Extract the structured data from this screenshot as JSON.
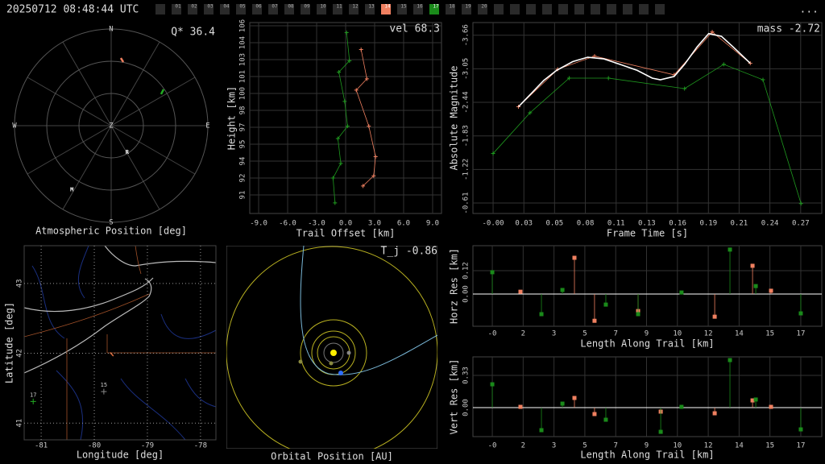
{
  "header": {
    "timestamp": "20250712 08:48:44 UTC",
    "menu": "...",
    "channels": [
      {
        "label": "01"
      },
      {
        "label": "02"
      },
      {
        "label": "03"
      },
      {
        "label": "04"
      },
      {
        "label": "05"
      },
      {
        "label": "06"
      },
      {
        "label": "07"
      },
      {
        "label": "08"
      },
      {
        "label": "09"
      },
      {
        "label": "10"
      },
      {
        "label": "11"
      },
      {
        "label": "12"
      },
      {
        "label": "13"
      },
      {
        "label": "14",
        "color": "#f08060"
      },
      {
        "label": "15"
      },
      {
        "label": "16"
      },
      {
        "label": "17",
        "color": "#1a8a1a"
      },
      {
        "label": "18"
      },
      {
        "label": "19"
      },
      {
        "label": "20"
      }
    ]
  },
  "chart_data": [
    {
      "type": "polar",
      "title": "Atmospheric Position [deg]",
      "annotation": "Q* 36.4",
      "compass": [
        "N",
        "E",
        "S",
        "W"
      ],
      "center_label": "Z",
      "rlim": [
        0,
        90
      ],
      "rings": [
        30,
        60,
        90
      ],
      "traces": [
        {
          "color": "#f08060",
          "az": [
            8.1,
            10.8
          ],
          "zen": [
            63.6,
            60.3
          ]
        },
        {
          "color": "#22aa22",
          "az": [
            57.8,
            55.3
          ],
          "zen": [
            54.9,
            59.3
          ]
        }
      ],
      "markers": [
        {
          "label": "R",
          "az": 149,
          "zen": 29
        },
        {
          "label": "M",
          "az": 211.5,
          "zen": 70
        }
      ]
    },
    {
      "type": "line",
      "annotation": "vel 68.3",
      "xlabel": "Trail Offset [km]",
      "ylabel": "Height [km]",
      "grid": "solid",
      "xlim": [
        -9.92,
        9.92
      ],
      "ylim": [
        89.36,
        106.29
      ],
      "xticks": [
        {
          "value": -9,
          "label": "-9.0"
        },
        {
          "value": -6,
          "label": "-6.0"
        },
        {
          "value": -3,
          "label": "-3.0"
        },
        {
          "value": 0,
          "label": "0.0"
        },
        {
          "value": 3,
          "label": "3.0"
        },
        {
          "value": 6,
          "label": "6.0"
        },
        {
          "value": 9,
          "label": "9.0"
        }
      ],
      "yticks": [
        91,
        {
          "value": 92.5,
          "label": "92"
        },
        94,
        {
          "value": 95.5,
          "label": "95"
        },
        97,
        {
          "value": 98.5,
          "label": "98"
        },
        100,
        {
          "value": 101.5,
          "label": "101"
        },
        103,
        {
          "value": 104.5,
          "label": "104"
        },
        106
      ],
      "series": [
        {
          "color": "#f08060",
          "marker": "+",
          "x": [
            1.8,
            2.9,
            3.1,
            2.4,
            1.1,
            2.2,
            1.6
          ],
          "values": [
            91.8,
            92.7,
            94.4,
            97.1,
            100.3,
            101.3,
            103.9
          ]
        },
        {
          "color": "#1f9a1f",
          "marker": "+",
          "x": [
            -1.1,
            -1.3,
            -0.5,
            -0.8,
            0.2,
            -0.1,
            -0.7,
            0.4,
            0.1
          ],
          "values": [
            90.3,
            92.5,
            93.8,
            96.0,
            97.1,
            99.3,
            101.9,
            102.9,
            105.4
          ]
        }
      ]
    },
    {
      "type": "line",
      "annotation": "mass -2.72",
      "xlabel": "Frame Time [s]",
      "ylabel": "Absolute Magnitude",
      "grid": "solid",
      "xlim": [
        -0.0175,
        0.285
      ],
      "ylim": [
        -0.42,
        -3.89
      ],
      "xticks": [
        {
          "value": 0,
          "label": "-0.00"
        },
        {
          "value": 0.0267,
          "label": "0.03"
        },
        {
          "value": 0.0533,
          "label": "0.05"
        },
        {
          "value": 0.08,
          "label": "0.08"
        },
        {
          "value": 0.1067,
          "label": "0.11"
        },
        {
          "value": 0.1333,
          "label": "0.13"
        },
        {
          "value": 0.16,
          "label": "0.16"
        },
        {
          "value": 0.1867,
          "label": "0.19"
        },
        {
          "value": 0.2133,
          "label": "0.21"
        },
        {
          "value": 0.24,
          "label": "0.24"
        },
        {
          "value": 0.2667,
          "label": "0.27"
        }
      ],
      "yticks": [
        -3.66,
        -3.05,
        -2.44,
        -1.83,
        -1.22,
        -0.61
      ],
      "series": [
        {
          "color": "#1f9a1f",
          "marker": "+",
          "x": [
            0,
            0.032,
            0.066,
            0.1,
            0.166,
            0.2,
            0.234,
            0.267
          ],
          "values": [
            -1.51,
            -2.25,
            -2.88,
            -2.88,
            -2.69,
            -3.13,
            -2.85,
            -0.6
          ]
        },
        {
          "color": "#f08060",
          "marker": "+",
          "x": [
            0.022,
            0.056,
            0.088,
            0.157,
            0.19,
            0.223
          ],
          "values": [
            -2.36,
            -3.04,
            -3.28,
            -2.94,
            -3.72,
            -3.15
          ]
        },
        {
          "color": "#ffffff",
          "marker": "none",
          "x": [
            0.022,
            0.034,
            0.044,
            0.055,
            0.069,
            0.082,
            0.096,
            0.11,
            0.125,
            0.138,
            0.145,
            0.157,
            0.166,
            0.177,
            0.187,
            0.198,
            0.208,
            0.223
          ],
          "values": [
            -2.36,
            -2.62,
            -2.84,
            -3.02,
            -3.18,
            -3.26,
            -3.23,
            -3.13,
            -3.02,
            -2.88,
            -2.85,
            -2.91,
            -3.13,
            -3.45,
            -3.69,
            -3.64,
            -3.45,
            -3.15
          ]
        }
      ]
    },
    {
      "type": "map",
      "xlabel": "Longitude [deg]",
      "ylabel": "Latitude [deg]",
      "grid": "dotted",
      "xlim": [
        -81.32,
        -77.71
      ],
      "ylim": [
        40.76,
        43.54
      ],
      "xticks": [
        -81,
        -80,
        -79,
        -78
      ],
      "yticks": [
        41,
        42,
        43
      ],
      "stations": [
        {
          "label": "17",
          "color": "#22aa22",
          "lon": -81.15,
          "lat": 41.31
        },
        {
          "label": "15",
          "color": "#888888",
          "lon": -79.82,
          "lat": 41.45
        }
      ],
      "trail": {
        "color": "#e07040",
        "lon": [
          -79.7,
          -79.64
        ],
        "lat": [
          42.01,
          41.96
        ]
      }
    },
    {
      "type": "orbit",
      "title": "Orbital Position [AU]",
      "annotation": "T_j -0.86"
    },
    {
      "type": "stem",
      "xlabel": "Length Along Trail [km]",
      "ylabel": "Horz Res [km]",
      "grid": "solid",
      "zero_line": true,
      "xlim": [
        -1.08,
        18.37
      ],
      "ylim": [
        -0.165,
        0.248
      ],
      "xticks": [
        {
          "value": 0,
          "label": "-0"
        },
        {
          "value": 1.72,
          "label": "2"
        },
        {
          "value": 3.44,
          "label": "3"
        },
        {
          "value": 5.16,
          "label": "5"
        },
        {
          "value": 6.88,
          "label": "7"
        },
        {
          "value": 8.6,
          "label": "9"
        },
        {
          "value": 10.32,
          "label": "10"
        },
        {
          "value": 12.04,
          "label": "12"
        },
        {
          "value": 13.76,
          "label": "14"
        },
        {
          "value": 15.48,
          "label": "15"
        },
        {
          "value": 17.2,
          "label": "17"
        }
      ],
      "yticks": [
        {
          "value": 0,
          "label": "0.00"
        },
        0.12
      ],
      "series": [
        {
          "color": "#f08060",
          "x": [
            1.57,
            4.58,
            5.7,
            8.13,
            12.4,
            14.51,
            15.54
          ],
          "values": [
            0.012,
            0.186,
            -0.137,
            -0.087,
            -0.116,
            0.145,
            0.017
          ]
        },
        {
          "color": "#1a8a1a",
          "x": [
            0,
            2.74,
            3.91,
            6.33,
            8.13,
            10.55,
            13.25,
            14.69,
            17.2
          ],
          "values": [
            0.112,
            -0.103,
            0.021,
            -0.054,
            -0.103,
            0.008,
            0.228,
            0.041,
            -0.099
          ]
        }
      ]
    },
    {
      "type": "stem",
      "xlabel": "Length Along Trail [km]",
      "ylabel": "Vert Res [km]",
      "grid": "solid",
      "zero_line": true,
      "xlim": [
        -1.08,
        18.37
      ],
      "ylim": [
        -0.297,
        0.52
      ],
      "xticks": [
        {
          "value": 0,
          "label": "-0"
        },
        {
          "value": 1.72,
          "label": "2"
        },
        {
          "value": 3.44,
          "label": "3"
        },
        {
          "value": 5.16,
          "label": "5"
        },
        {
          "value": 6.88,
          "label": "7"
        },
        {
          "value": 8.6,
          "label": "9"
        },
        {
          "value": 10.32,
          "label": "10"
        },
        {
          "value": 12.04,
          "label": "12"
        },
        {
          "value": 13.76,
          "label": "14"
        },
        {
          "value": 15.48,
          "label": "15"
        },
        {
          "value": 17.2,
          "label": "17"
        }
      ],
      "yticks": [
        {
          "value": 0,
          "label": "0.00"
        },
        0.33
      ],
      "series": [
        {
          "color": "#f08060",
          "x": [
            1.57,
            4.58,
            5.7,
            9.39,
            12.4,
            14.51,
            15.54
          ],
          "values": [
            0.008,
            0.099,
            -0.066,
            -0.041,
            -0.058,
            0.074,
            0.008
          ]
        },
        {
          "color": "#1a8a1a",
          "x": [
            0,
            2.74,
            3.91,
            6.33,
            9.39,
            10.55,
            13.25,
            14.69,
            17.2
          ],
          "values": [
            0.239,
            -0.231,
            0.041,
            -0.124,
            -0.248,
            0.008,
            0.487,
            0.083,
            -0.223
          ]
        }
      ]
    }
  ]
}
